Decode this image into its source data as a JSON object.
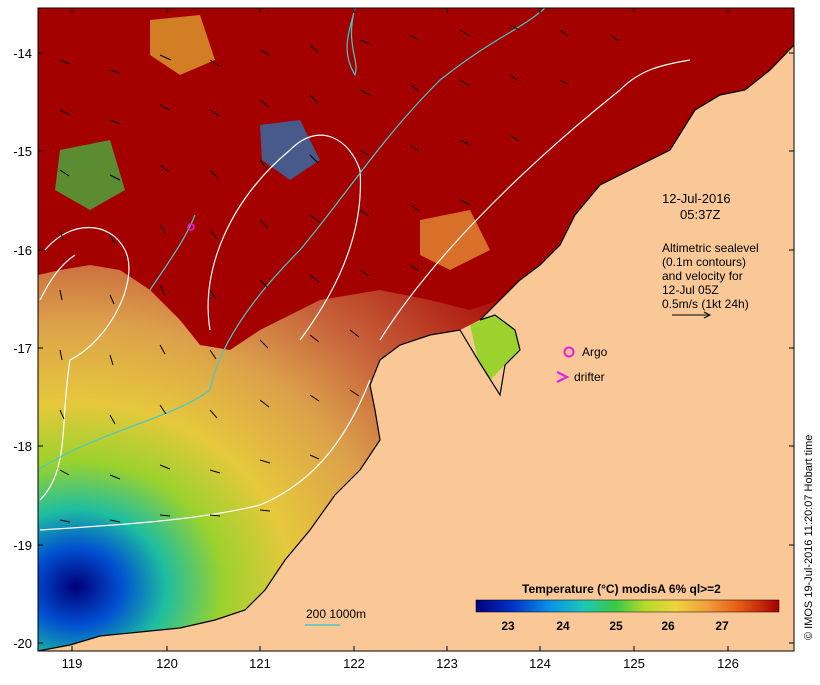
{
  "map": {
    "lon_ticks": [
      "119",
      "120",
      "121",
      "122",
      "123",
      "124",
      "125",
      "126"
    ],
    "lat_ticks": [
      "-14",
      "-15",
      "-16",
      "-17",
      "-18",
      "-19",
      "-20"
    ],
    "timestamp_date": "12-Jul-2016",
    "timestamp_time": "05:37Z",
    "info_lines": [
      "Altimetric sealevel",
      "(0.1m contours)",
      "and velocity for",
      "12-Jul 05Z",
      "0.5m/s (1kt 24h)"
    ],
    "argo_label": "Argo",
    "drifter_label": "drifter",
    "depth_contour_label": "200  1000m",
    "credit": "© IMOS 19-Jul-2016 11:20:07 Hobart time"
  },
  "legend": {
    "title": "Temperature (°C) modisA 6% ql>=2",
    "ticks": [
      "23",
      "24",
      "25",
      "26",
      "27"
    ],
    "colors": [
      "#00007a",
      "#0032c8",
      "#0a96e6",
      "#1ec8b4",
      "#3cc846",
      "#b4dc28",
      "#f0d23c",
      "#f0a03c",
      "#e65a14",
      "#a50000"
    ]
  },
  "colors": {
    "land": "#f9c896",
    "warm_sea": "#a50000",
    "coastline": "#000000",
    "sealevel_contour": "#ffffff",
    "isobath": "#46c8c8",
    "markers": "#e61ee6"
  }
}
